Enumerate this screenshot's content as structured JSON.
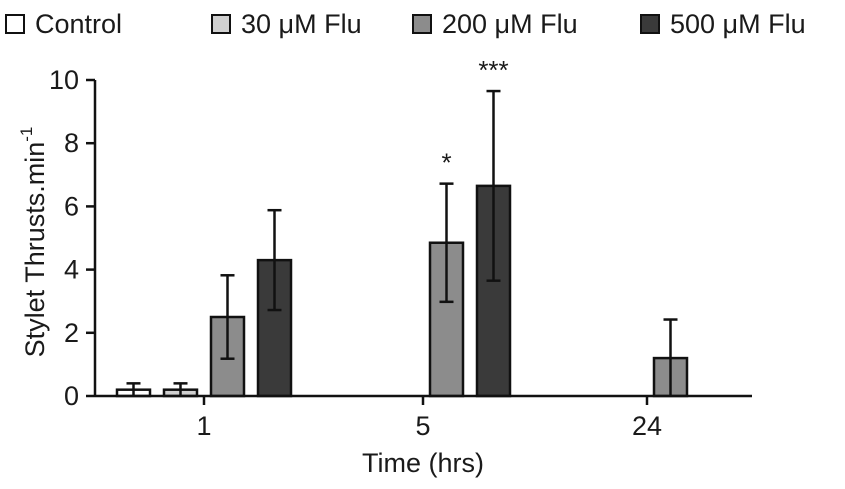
{
  "chart_data": {
    "type": "bar",
    "xlabel": "Time (hrs)",
    "ylabel": "Stylet Thrusts.min",
    "ylabel_superscript": "-1",
    "ylim": [
      0,
      10
    ],
    "yticks": [
      "0",
      "2",
      "4",
      "6",
      "8",
      "10"
    ],
    "categories": [
      "1",
      "5",
      "24"
    ],
    "legend_position": "top",
    "series": [
      {
        "name": "Control",
        "color": "#ffffff",
        "values": [
          0.2,
          0,
          0
        ],
        "errors": [
          0.2,
          0,
          0
        ],
        "annotations": [
          "",
          "",
          ""
        ]
      },
      {
        "name": "30 μM Flu",
        "color": "#d0d0d0",
        "values": [
          0.2,
          0,
          0
        ],
        "errors": [
          0.2,
          0,
          0
        ],
        "annotations": [
          "",
          "",
          ""
        ]
      },
      {
        "name": "200 μM Flu",
        "color": "#8c8c8c",
        "values": [
          2.5,
          4.85,
          1.2
        ],
        "errors": [
          1.32,
          1.87,
          1.22
        ],
        "annotations": [
          "",
          "*",
          ""
        ]
      },
      {
        "name": "500 μM Flu",
        "color": "#3a3a3a",
        "values": [
          4.3,
          6.65,
          0
        ],
        "errors": [
          1.58,
          3.0,
          0
        ],
        "annotations": [
          "",
          "***",
          ""
        ]
      }
    ]
  }
}
